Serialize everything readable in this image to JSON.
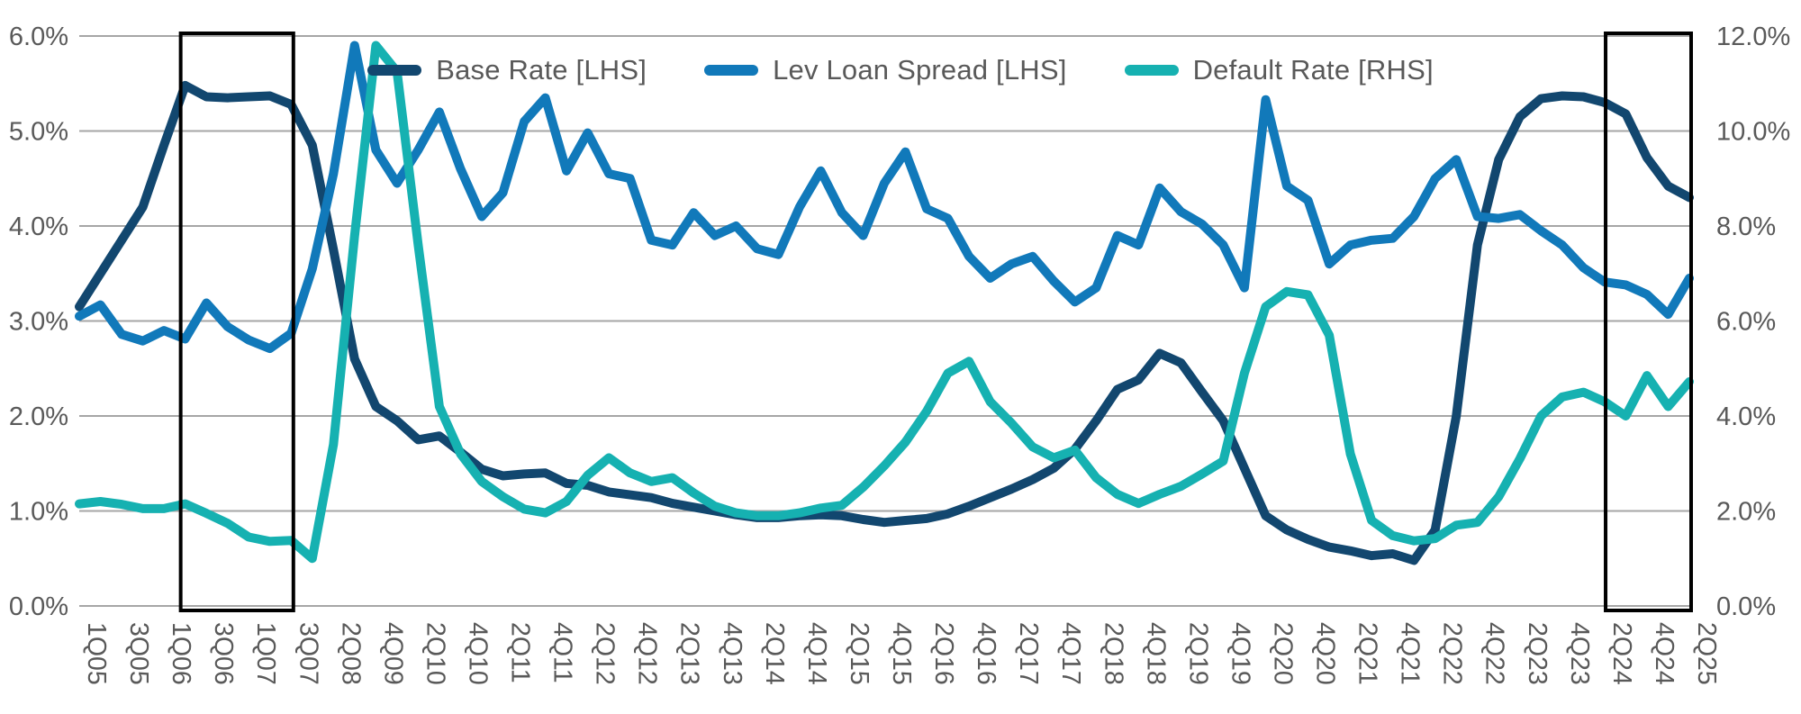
{
  "chart_data": {
    "type": "line",
    "title": "",
    "xlabel": "",
    "ylabel_left": "",
    "ylabel_right": "",
    "grid": true,
    "legend_position": "top-center",
    "x_tick_labels": [
      "1Q05",
      "3Q05",
      "1Q06",
      "3Q06",
      "1Q07",
      "3Q07",
      "2Q08",
      "4Q09",
      "2Q10",
      "4Q10",
      "2Q11",
      "4Q11",
      "2Q12",
      "4Q12",
      "2Q13",
      "4Q13",
      "2Q14",
      "4Q14",
      "2Q15",
      "4Q15",
      "2Q16",
      "4Q16",
      "2Q17",
      "4Q17",
      "2Q18",
      "4Q18",
      "2Q19",
      "4Q19",
      "2Q20",
      "4Q20",
      "2Q21",
      "4Q21",
      "2Q22",
      "4Q22",
      "2Q23",
      "4Q23",
      "2Q24",
      "4Q24",
      "2Q25"
    ],
    "points_per_tick": 2,
    "left_axis": {
      "min": 0,
      "max": 6,
      "step": 1,
      "tick_labels": [
        "0.0%",
        "1.0%",
        "2.0%",
        "3.0%",
        "4.0%",
        "5.0%",
        "6.0%"
      ]
    },
    "right_axis": {
      "min": 0,
      "max": 12,
      "step": 2,
      "tick_labels": [
        "0.0%",
        "2.0%",
        "4.0%",
        "6.0%",
        "8.0%",
        "10.0%",
        "12.0%"
      ]
    },
    "series": [
      {
        "name": "Base Rate [LHS]",
        "axis": "left",
        "color": "#12476f",
        "values": [
          3.15,
          3.5,
          3.85,
          4.2,
          4.85,
          5.48,
          5.36,
          5.35,
          5.36,
          5.37,
          5.28,
          4.85,
          3.75,
          2.6,
          2.1,
          1.95,
          1.75,
          1.79,
          1.62,
          1.44,
          1.37,
          1.39,
          1.4,
          1.29,
          1.27,
          1.2,
          1.17,
          1.14,
          1.08,
          1.04,
          1.0,
          0.96,
          0.93,
          0.93,
          0.95,
          0.96,
          0.95,
          0.91,
          0.88,
          0.9,
          0.92,
          0.97,
          1.05,
          1.14,
          1.23,
          1.33,
          1.45,
          1.65,
          1.95,
          2.28,
          2.38,
          2.66,
          2.56,
          2.25,
          1.95,
          1.45,
          0.95,
          0.8,
          0.7,
          0.62,
          0.58,
          0.53,
          0.55,
          0.48,
          0.8,
          2.0,
          3.8,
          4.7,
          5.15,
          5.34,
          5.37,
          5.36,
          5.3,
          5.18,
          4.72,
          4.42,
          4.3
        ]
      },
      {
        "name": "Lev Loan Spread [LHS]",
        "axis": "left",
        "color": "#1179ba",
        "values": [
          3.05,
          3.17,
          2.86,
          2.79,
          2.9,
          2.81,
          3.19,
          2.94,
          2.8,
          2.71,
          2.87,
          3.55,
          4.55,
          5.9,
          4.8,
          4.45,
          4.8,
          5.2,
          4.6,
          4.1,
          4.35,
          5.1,
          5.35,
          4.58,
          4.98,
          4.55,
          4.5,
          3.85,
          3.8,
          4.14,
          3.9,
          4.0,
          3.76,
          3.7,
          4.2,
          4.58,
          4.14,
          3.9,
          4.45,
          4.78,
          4.18,
          4.08,
          3.68,
          3.45,
          3.6,
          3.68,
          3.42,
          3.2,
          3.35,
          3.9,
          3.8,
          4.4,
          4.15,
          4.02,
          3.8,
          3.35,
          5.33,
          4.42,
          4.27,
          3.6,
          3.8,
          3.85,
          3.87,
          4.1,
          4.5,
          4.7,
          4.1,
          4.08,
          4.12,
          3.95,
          3.8,
          3.56,
          3.41,
          3.38,
          3.28,
          3.07,
          3.45
        ]
      },
      {
        "name": "Default Rate [RHS]",
        "axis": "right",
        "color": "#16b1b1",
        "values": [
          2.15,
          2.2,
          2.14,
          2.05,
          2.05,
          2.15,
          1.95,
          1.74,
          1.45,
          1.36,
          1.38,
          1.0,
          3.4,
          7.8,
          11.8,
          11.25,
          7.6,
          4.2,
          3.2,
          2.62,
          2.3,
          2.04,
          1.96,
          2.2,
          2.75,
          3.12,
          2.8,
          2.62,
          2.7,
          2.38,
          2.1,
          1.96,
          1.9,
          1.9,
          1.96,
          2.06,
          2.12,
          2.5,
          2.95,
          3.45,
          4.1,
          4.9,
          5.15,
          4.3,
          3.85,
          3.35,
          3.12,
          3.28,
          2.7,
          2.35,
          2.16,
          2.35,
          2.52,
          2.78,
          3.05,
          4.9,
          6.3,
          6.62,
          6.55,
          5.7,
          3.2,
          1.8,
          1.48,
          1.37,
          1.42,
          1.7,
          1.76,
          2.3,
          3.1,
          4.0,
          4.4,
          4.5,
          4.3,
          4.0,
          4.85,
          4.2,
          4.72
        ]
      }
    ],
    "highlight_boxes": [
      {
        "x_start_frac": 0.063,
        "x_end_frac": 0.133
      },
      {
        "x_start_frac": 0.948,
        "x_end_frac": 1.002
      }
    ],
    "colors": {
      "gridline": "#a6a6a6",
      "axis_text": "#595959",
      "highlight_box_stroke": "#000000",
      "background": "#ffffff"
    }
  }
}
